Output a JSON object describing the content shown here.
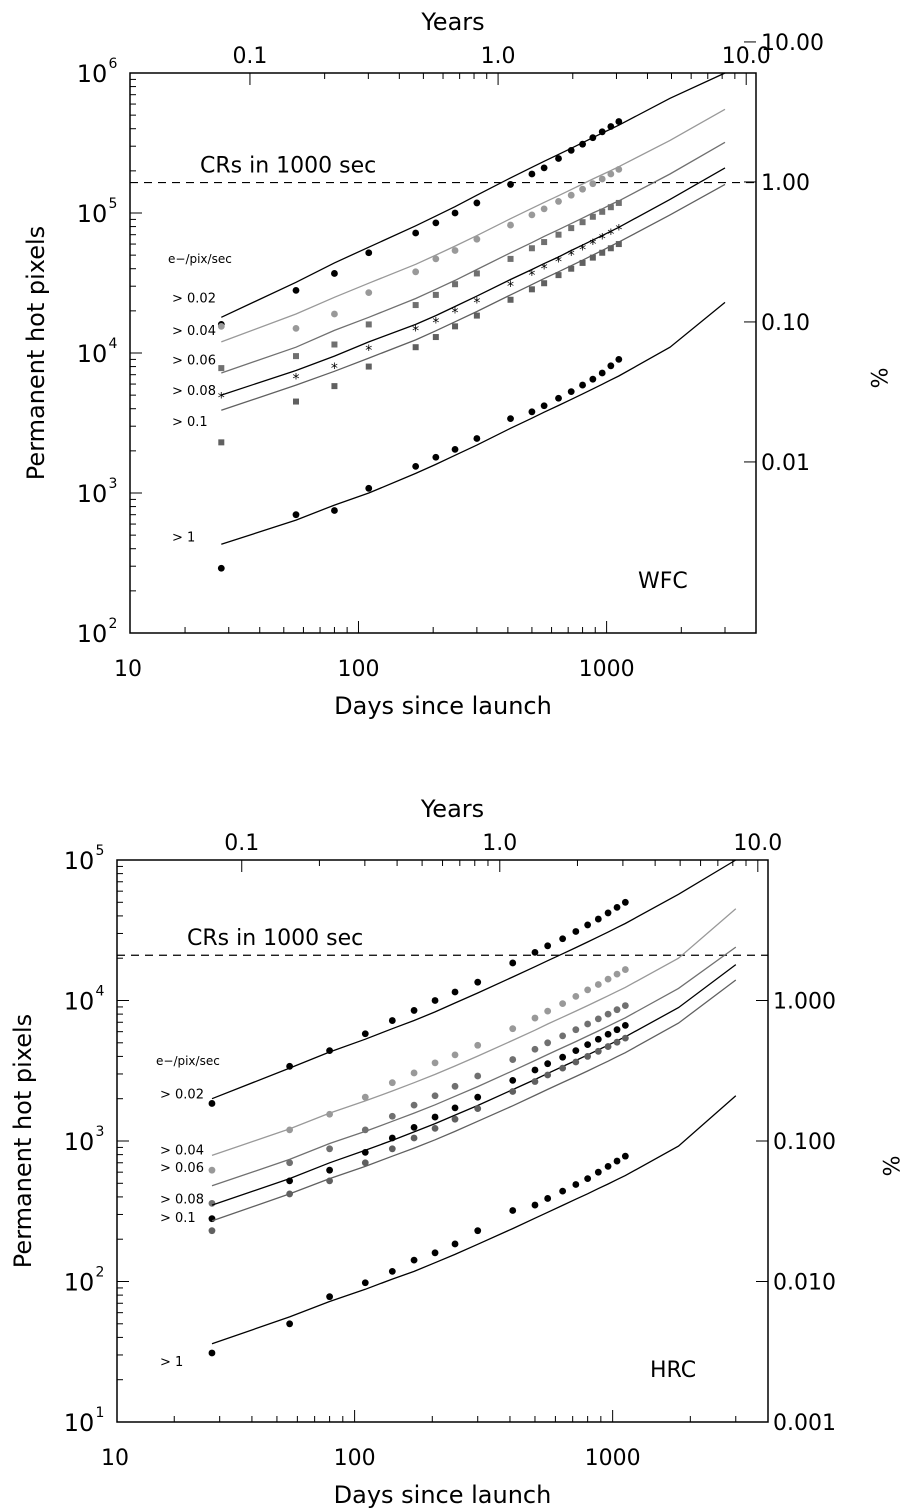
{
  "chart_data": [
    {
      "type": "scatter",
      "panel_label": "WFC",
      "xlabel": "Days since launch",
      "ylabel": "Permanent hot pixels",
      "top_axis_label": "Years",
      "right_axis_label": "%",
      "x_scale": "log",
      "y_scale": "log",
      "xlim": [
        12,
        4000
      ],
      "ylim": [
        100,
        1000000
      ],
      "x_ticks": [
        {
          "value": 10,
          "label": "10"
        },
        {
          "value": 100,
          "label": "100"
        },
        {
          "value": 1000,
          "label": "1000"
        }
      ],
      "y_ticks": [
        {
          "value": 100,
          "base": "10",
          "exp": "2"
        },
        {
          "value": 1000,
          "base": "10",
          "exp": "3"
        },
        {
          "value": 10000,
          "base": "10",
          "exp": "4"
        },
        {
          "value": 100000,
          "base": "10",
          "exp": "5"
        },
        {
          "value": 1000000,
          "base": "10",
          "exp": "6"
        }
      ],
      "top_ticks": [
        {
          "value": 0.1,
          "label": "0.1"
        },
        {
          "value": 1.0,
          "label": "1.0"
        },
        {
          "value": 10.0,
          "label": "10.0"
        }
      ],
      "right_ticks": [
        {
          "value": 0.01,
          "label": "0.01"
        },
        {
          "value": 0.1,
          "label": "0.10"
        },
        {
          "value": 1.0,
          "label": "1.00"
        },
        {
          "value": 10.0,
          "label": "10.00"
        }
      ],
      "right_percent_per_pixel": 6e-06,
      "reference_line": {
        "label": "CRs in 1000 sec",
        "y": 165000
      },
      "legend_title": "e−/pix/sec",
      "series": [
        {
          "name": "> 0.02",
          "color": "#000000",
          "marker": "circle",
          "label_y": 23000,
          "x": [
            28,
            56,
            80,
            110,
            170,
            205,
            245,
            300,
            410,
            500,
            560,
            640,
            720,
            800,
            880,
            960,
            1040,
            1120
          ],
          "y": [
            16000,
            28000,
            37000,
            52000,
            72000,
            85000,
            100000,
            118000,
            160000,
            190000,
            210000,
            245000,
            280000,
            310000,
            345000,
            380000,
            415000,
            450000
          ],
          "fit_y": [
            18000,
            32000,
            44000,
            57000,
            81000,
            95000,
            111000,
            134000,
            178000,
            212000,
            234000,
            262000,
            290000,
            318000,
            345000,
            372000,
            398000,
            424000,
            660000,
            1000000
          ]
        },
        {
          "name": "> 0.04",
          "color": "#999999",
          "marker": "circle",
          "label_y": 13500,
          "x": [
            28,
            56,
            80,
            110,
            170,
            205,
            245,
            300,
            410,
            500,
            560,
            640,
            720,
            800,
            880,
            960,
            1040,
            1120
          ],
          "y": [
            15500,
            15000,
            19000,
            27000,
            38000,
            47000,
            54000,
            65000,
            82000,
            97000,
            107000,
            121000,
            134000,
            148000,
            162000,
            175000,
            190000,
            205000
          ],
          "fit_y": [
            12000,
            19000,
            25000,
            31500,
            43000,
            50000,
            58000,
            69000,
            91000,
            108000,
            119000,
            133000,
            147000,
            161000,
            175000,
            188000,
            201000,
            214000,
            330000,
            550000
          ]
        },
        {
          "name": "> 0.06",
          "color": "#707070",
          "marker": "square",
          "label_y": 8300,
          "x": [
            28,
            56,
            80,
            110,
            170,
            205,
            245,
            300,
            410,
            500,
            560,
            640,
            720,
            800,
            880,
            960,
            1040,
            1120
          ],
          "y": [
            7800,
            9500,
            11500,
            16000,
            22000,
            26000,
            31000,
            37000,
            47000,
            56000,
            62000,
            70000,
            78000,
            86000,
            94000,
            102000,
            110000,
            118000
          ],
          "fit_y": [
            7200,
            11000,
            14500,
            18000,
            24500,
            28500,
            33000,
            39500,
            52000,
            61500,
            68000,
            76000,
            84000,
            92000,
            100000,
            107000,
            115000,
            122000,
            190000,
            320000
          ]
        },
        {
          "name": "> 0.08",
          "color": "#000000",
          "marker": "star",
          "label_y": 5000,
          "x": [
            28,
            56,
            80,
            110,
            170,
            205,
            245,
            300,
            410,
            500,
            560,
            640,
            720,
            800,
            880,
            960,
            1040,
            1120
          ],
          "y": [
            4800,
            6600,
            7800,
            10500,
            14500,
            16500,
            19500,
            23000,
            30000,
            36000,
            40000,
            45000,
            50000,
            55000,
            60000,
            66000,
            71000,
            76000
          ],
          "fit_y": [
            5000,
            7500,
            9500,
            12000,
            16000,
            18500,
            21500,
            25500,
            33500,
            39500,
            43500,
            48500,
            54000,
            59000,
            64000,
            69000,
            74000,
            79000,
            125000,
            210000
          ]
        },
        {
          "name": "> 0.1",
          "color": "#606060",
          "marker": "square",
          "label_y": 3000,
          "x": [
            28,
            56,
            80,
            110,
            170,
            205,
            245,
            300,
            410,
            500,
            560,
            640,
            720,
            800,
            880,
            960,
            1040,
            1120
          ],
          "y": [
            2300,
            4500,
            5800,
            8000,
            11000,
            13000,
            15500,
            18500,
            24000,
            28500,
            31500,
            36000,
            40000,
            44000,
            48000,
            52000,
            56000,
            60000
          ],
          "fit_y": [
            3900,
            5900,
            7400,
            9200,
            12400,
            14400,
            16700,
            19800,
            26000,
            30800,
            34000,
            38000,
            42000,
            46000,
            50000,
            54000,
            58000,
            62000,
            97000,
            160000
          ]
        },
        {
          "name": "> 1",
          "color": "#000000",
          "marker": "circle",
          "label_y": 450,
          "x": [
            28,
            56,
            80,
            110,
            170,
            205,
            245,
            300,
            410,
            500,
            560,
            640,
            720,
            800,
            880,
            960,
            1040,
            1120
          ],
          "y": [
            290,
            700,
            750,
            1080,
            1550,
            1800,
            2050,
            2450,
            3400,
            3800,
            4200,
            4750,
            5300,
            5900,
            6500,
            7200,
            8100,
            9000
          ],
          "fit_y": [
            430,
            640,
            820,
            1000,
            1380,
            1600,
            1860,
            2200,
            2900,
            3420,
            3780,
            4220,
            4660,
            5100,
            5540,
            5980,
            6420,
            6850,
            11000,
            23000
          ]
        }
      ],
      "fit_x": [
        28,
        56,
        80,
        110,
        170,
        205,
        245,
        300,
        410,
        500,
        560,
        640,
        720,
        800,
        880,
        960,
        1040,
        1120,
        1800,
        3000
      ]
    },
    {
      "type": "scatter",
      "panel_label": "HRC",
      "xlabel": "Days since launch",
      "ylabel": "Permanent hot pixels",
      "top_axis_label": "Years",
      "right_axis_label": "%",
      "x_scale": "log",
      "y_scale": "log",
      "xlim": [
        12,
        4000
      ],
      "ylim": [
        10,
        100000
      ],
      "x_ticks": [
        {
          "value": 10,
          "label": "10"
        },
        {
          "value": 100,
          "label": "100"
        },
        {
          "value": 1000,
          "label": "1000"
        }
      ],
      "y_ticks": [
        {
          "value": 10,
          "base": "10",
          "exp": "1"
        },
        {
          "value": 100,
          "base": "10",
          "exp": "2"
        },
        {
          "value": 1000,
          "base": "10",
          "exp": "3"
        },
        {
          "value": 10000,
          "base": "10",
          "exp": "4"
        },
        {
          "value": 100000,
          "base": "10",
          "exp": "5"
        }
      ],
      "top_ticks": [
        {
          "value": 0.1,
          "label": "0.1"
        },
        {
          "value": 1.0,
          "label": "1.0"
        },
        {
          "value": 10.0,
          "label": "10.0"
        }
      ],
      "right_ticks": [
        {
          "value": 0.001,
          "label": "0.001"
        },
        {
          "value": 0.01,
          "label": "0.010"
        },
        {
          "value": 0.1,
          "label": "0.100"
        },
        {
          "value": 1.0,
          "label": "1.000"
        }
      ],
      "right_percent_per_pixel": 0.0001,
      "reference_line": {
        "label": "CRs in 1000 sec",
        "y": 21000
      },
      "legend_title": "e−/pix/sec",
      "series": [
        {
          "name": "> 0.02",
          "color": "#000000",
          "marker": "circle",
          "label_y": 2000,
          "x": [
            28,
            56,
            80,
            110,
            140,
            170,
            205,
            245,
            300,
            410,
            500,
            560,
            640,
            720,
            800,
            880,
            960,
            1040,
            1120
          ],
          "y": [
            1850,
            3400,
            4400,
            5800,
            7200,
            8500,
            10000,
            11500,
            13500,
            18500,
            22000,
            24500,
            27500,
            31000,
            34500,
            38000,
            42000,
            46000,
            50000
          ],
          "fit_y": [
            2000,
            3300,
            4300,
            5300,
            6300,
            7200,
            8300,
            9600,
            11300,
            14700,
            17400,
            19200,
            21500,
            23800,
            26100,
            28400,
            30700,
            33000,
            35300,
            57000,
            100000
          ]
        },
        {
          "name": "> 0.04",
          "color": "#999999",
          "marker": "circle",
          "label_y": 800,
          "x": [
            28,
            56,
            80,
            110,
            140,
            170,
            205,
            245,
            300,
            410,
            500,
            560,
            640,
            720,
            800,
            880,
            960,
            1040,
            1120
          ],
          "y": [
            620,
            1200,
            1550,
            2050,
            2600,
            3050,
            3600,
            4100,
            4800,
            6300,
            7500,
            8400,
            9500,
            10700,
            11900,
            13000,
            14200,
            15400,
            16600
          ],
          "fit_y": [
            790,
            1220,
            1580,
            1930,
            2270,
            2600,
            2980,
            3420,
            4020,
            5200,
            6150,
            6800,
            7600,
            8400,
            9200,
            10000,
            10800,
            11600,
            12400,
            20000,
            45000
          ]
        },
        {
          "name": "> 0.06",
          "color": "#707070",
          "marker": "circle",
          "label_y": 600,
          "x": [
            28,
            56,
            80,
            110,
            140,
            170,
            205,
            245,
            300,
            410,
            500,
            560,
            640,
            720,
            800,
            880,
            960,
            1040,
            1120
          ],
          "y": [
            360,
            700,
            880,
            1200,
            1500,
            1800,
            2100,
            2450,
            2900,
            3800,
            4500,
            5000,
            5600,
            6200,
            6800,
            7400,
            8000,
            8600,
            9200
          ],
          "fit_y": [
            480,
            740,
            960,
            1170,
            1380,
            1580,
            1810,
            2080,
            2440,
            3160,
            3740,
            4130,
            4620,
            5100,
            5590,
            6070,
            6560,
            7050,
            7530,
            12200,
            24000
          ]
        },
        {
          "name": "> 0.08",
          "color": "#000000",
          "marker": "circle",
          "label_y": 360,
          "x": [
            28,
            56,
            80,
            110,
            140,
            170,
            205,
            245,
            300,
            410,
            500,
            560,
            640,
            720,
            800,
            880,
            960,
            1040,
            1120
          ],
          "y": [
            280,
            520,
            620,
            830,
            1050,
            1250,
            1480,
            1720,
            2050,
            2700,
            3200,
            3550,
            3950,
            4400,
            4850,
            5300,
            5750,
            6200,
            6650
          ],
          "fit_y": [
            350,
            540,
            700,
            860,
            1010,
            1160,
            1330,
            1530,
            1790,
            2320,
            2740,
            3030,
            3390,
            3740,
            4100,
            4450,
            4810,
            5170,
            5520,
            8900,
            18000
          ]
        },
        {
          "name": "> 0.1",
          "color": "#606060",
          "marker": "circle",
          "label_y": 265,
          "x": [
            28,
            56,
            80,
            110,
            140,
            170,
            205,
            245,
            300,
            410,
            500,
            560,
            640,
            720,
            800,
            880,
            960,
            1040,
            1120
          ],
          "y": [
            230,
            420,
            520,
            700,
            880,
            1050,
            1230,
            1430,
            1700,
            2250,
            2650,
            2950,
            3300,
            3650,
            4000,
            4350,
            4700,
            5050,
            5400
          ],
          "fit_y": [
            270,
            420,
            540,
            660,
            780,
            890,
            1020,
            1170,
            1380,
            1780,
            2110,
            2330,
            2610,
            2880,
            3150,
            3430,
            3700,
            3980,
            4250,
            6900,
            14000
          ]
        },
        {
          "name": "> 1",
          "color": "#000000",
          "marker": "circle",
          "label_y": 25,
          "x": [
            28,
            56,
            80,
            110,
            140,
            170,
            205,
            245,
            300,
            410,
            500,
            560,
            640,
            720,
            800,
            880,
            960,
            1040,
            1120
          ],
          "y": [
            31,
            50,
            78,
            98,
            118,
            142,
            160,
            185,
            230,
            320,
            350,
            390,
            440,
            490,
            540,
            600,
            660,
            720,
            780
          ],
          "fit_y": [
            36,
            56,
            72,
            88,
            104,
            118,
            136,
            156,
            184,
            238,
            282,
            311,
            348,
            385,
            421,
            458,
            494,
            531,
            567,
            920,
            2100
          ]
        }
      ],
      "fit_x": [
        28,
        56,
        80,
        110,
        140,
        170,
        205,
        245,
        300,
        410,
        500,
        560,
        640,
        720,
        800,
        880,
        960,
        1040,
        1120,
        1800,
        3000
      ]
    }
  ]
}
